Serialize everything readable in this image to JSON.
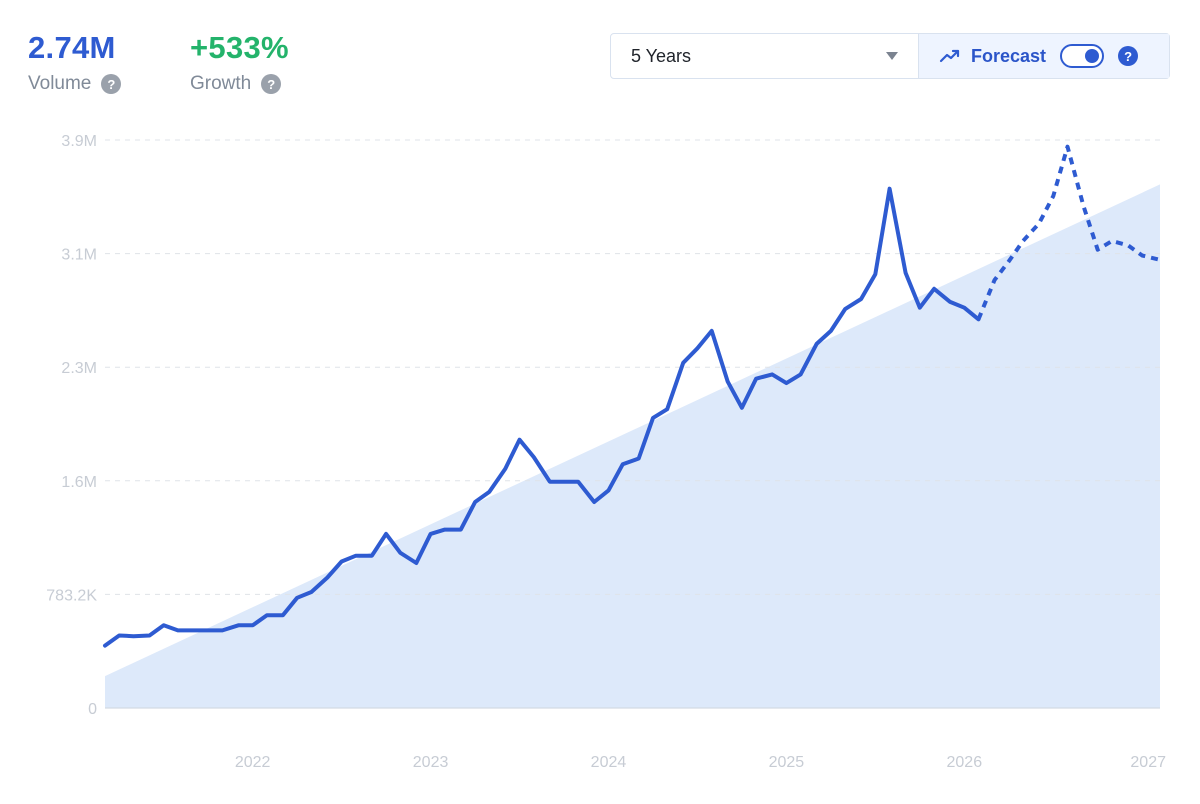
{
  "stats": {
    "volume": {
      "value": "2.74M",
      "label": "Volume",
      "color": "#2e5bd1"
    },
    "growth": {
      "value": "+533%",
      "label": "Growth",
      "color": "#24b36b"
    }
  },
  "controls": {
    "range": "5 Years",
    "forecast_label": "Forecast",
    "forecast_on": true
  },
  "chart_data": {
    "type": "line",
    "title": "",
    "xlabel": "",
    "ylabel": "",
    "y_ticks": [
      {
        "value": 0,
        "label": "0"
      },
      {
        "value": 783200,
        "label": "783.2K"
      },
      {
        "value": 1566400,
        "label": "1.6M"
      },
      {
        "value": 2349600,
        "label": "2.3M"
      },
      {
        "value": 3132800,
        "label": "3.1M"
      },
      {
        "value": 3916000,
        "label": "3.9M"
      }
    ],
    "x_ticks": [
      {
        "value": 2022,
        "label": "2022"
      },
      {
        "value": 2023,
        "label": "2023"
      },
      {
        "value": 2024,
        "label": "2024"
      },
      {
        "value": 2025,
        "label": "2025"
      },
      {
        "value": 2026,
        "label": "2026"
      },
      {
        "value": 2027,
        "label": "2027"
      }
    ],
    "xlim": [
      2021.17,
      2027.1
    ],
    "ylim": [
      0,
      3916000
    ],
    "grid": true,
    "colors": {
      "line": "#2e5bd1",
      "trend_fill": "#dde9fa",
      "grid": "#dfe3e8"
    },
    "series": [
      {
        "style": "solid",
        "x": [
          2021.17,
          2021.25,
          2021.33,
          2021.42,
          2021.5,
          2021.58,
          2021.67,
          2021.75,
          2021.83,
          2021.92,
          2022.0,
          2022.08,
          2022.17,
          2022.25,
          2022.33,
          2022.42,
          2022.5,
          2022.58,
          2022.67,
          2022.75,
          2022.83,
          2022.92,
          2023.0,
          2023.08,
          2023.17,
          2023.25,
          2023.33,
          2023.42,
          2023.5,
          2023.58,
          2023.67,
          2023.75,
          2023.83,
          2023.92,
          2024.0,
          2024.08,
          2024.17,
          2024.25,
          2024.33,
          2024.42,
          2024.5,
          2024.58,
          2024.67,
          2024.75,
          2024.83,
          2024.92,
          2025.0,
          2025.08,
          2025.17,
          2025.25,
          2025.33,
          2025.42,
          2025.5,
          2025.58,
          2025.67,
          2025.75,
          2025.83,
          2025.92,
          2026.0,
          2026.08
        ],
        "y": [
          430000,
          500000,
          495000,
          500000,
          570000,
          535000,
          535000,
          535000,
          535000,
          570000,
          570000,
          640000,
          640000,
          760000,
          800000,
          900000,
          1010000,
          1050000,
          1050000,
          1200000,
          1070000,
          1000000,
          1200000,
          1230000,
          1230000,
          1420000,
          1490000,
          1650000,
          1850000,
          1730000,
          1560000,
          1560000,
          1560000,
          1420000,
          1500000,
          1680000,
          1720000,
          2000000,
          2060000,
          2380000,
          2480000,
          2600000,
          2250000,
          2070000,
          2270000,
          2300000,
          2240000,
          2300000,
          2510000,
          2600000,
          2750000,
          2820000,
          2990000,
          3580000,
          3000000,
          2760000,
          2890000,
          2800000,
          2760000,
          2680000
        ]
      },
      {
        "style": "dashed",
        "x": [
          2026.08,
          2026.17,
          2026.25,
          2026.33,
          2026.42,
          2026.5,
          2026.58,
          2026.67,
          2026.75,
          2026.83,
          2026.92,
          2027.0,
          2027.1
        ],
        "y": [
          2680000,
          2950000,
          3080000,
          3220000,
          3340000,
          3530000,
          3870000,
          3460000,
          3160000,
          3220000,
          3190000,
          3120000,
          3090000
        ]
      },
      {
        "style": "trend-area",
        "x": [
          2021.17,
          2027.1
        ],
        "y": [
          220000,
          3610000
        ]
      }
    ]
  }
}
